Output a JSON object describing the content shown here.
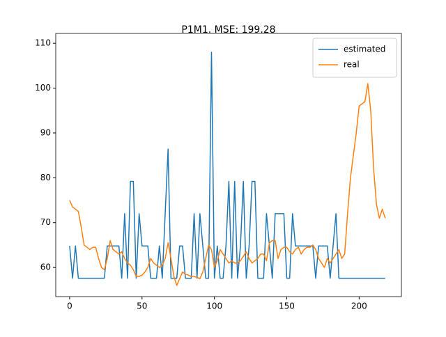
{
  "chart_data": {
    "type": "line",
    "title": "P1M1. MSE: 199.28",
    "x": [
      0,
      2,
      4,
      6,
      8,
      10,
      12,
      14,
      16,
      18,
      20,
      22,
      24,
      26,
      28,
      30,
      32,
      34,
      36,
      38,
      40,
      42,
      44,
      46,
      48,
      50,
      52,
      54,
      56,
      58,
      60,
      62,
      64,
      66,
      68,
      70,
      72,
      74,
      76,
      78,
      80,
      82,
      84,
      86,
      88,
      90,
      92,
      94,
      96,
      98,
      100,
      102,
      104,
      106,
      108,
      110,
      112,
      114,
      116,
      118,
      120,
      122,
      124,
      126,
      128,
      130,
      132,
      134,
      136,
      138,
      140,
      142,
      144,
      146,
      148,
      150,
      152,
      154,
      156,
      158,
      160,
      162,
      164,
      166,
      168,
      170,
      172,
      174,
      176,
      178,
      180,
      182,
      184,
      186,
      188,
      190,
      192,
      194,
      196,
      198,
      200,
      202,
      204,
      206,
      208,
      210,
      212,
      214,
      216,
      218
    ],
    "series": [
      {
        "name": "estimated",
        "color": "#1f77b4",
        "values": [
          64.8,
          57.6,
          64.8,
          57.6,
          57.6,
          57.6,
          57.6,
          57.6,
          57.6,
          57.6,
          57.6,
          57.6,
          57.6,
          64.8,
          64.8,
          64.8,
          64.8,
          64.8,
          57.6,
          72,
          57.6,
          79.2,
          79.2,
          57.6,
          72,
          64.8,
          64.8,
          64.8,
          57.6,
          57.6,
          57.6,
          64.8,
          57.6,
          72,
          86.4,
          57.6,
          57.6,
          57.6,
          64.8,
          64.8,
          57.6,
          57.6,
          57.6,
          72,
          57.6,
          72,
          64.8,
          57.6,
          57.6,
          108,
          57.6,
          64.8,
          57.6,
          57.6,
          64.8,
          79.2,
          57.6,
          79.2,
          57.6,
          64.8,
          79.2,
          57.6,
          64.8,
          79.2,
          79.2,
          57.6,
          57.6,
          57.6,
          72,
          64.8,
          57.6,
          72,
          72,
          72,
          72,
          57.6,
          57.6,
          72,
          64.8,
          64.8,
          64.8,
          64.8,
          64.8,
          64.8,
          64.8,
          57.6,
          64.8,
          64.8,
          64.8,
          64.8,
          57.6,
          64.8,
          72,
          57.6,
          57.6,
          57.6,
          57.6,
          57.6,
          57.6,
          57.6,
          57.6,
          57.6,
          57.6,
          57.6,
          57.6,
          57.6,
          57.6,
          57.6,
          57.6,
          57.6
        ]
      },
      {
        "name": "real",
        "color": "#ff7f0e",
        "values": [
          75,
          73.5,
          73,
          72.5,
          69,
          65,
          64.5,
          64,
          64.5,
          64.5,
          62,
          60,
          59.5,
          62,
          66,
          64,
          63.5,
          63,
          63.5,
          62,
          61,
          60.5,
          59.5,
          58,
          58,
          58.3,
          59,
          60,
          62,
          61,
          60.5,
          60,
          60.5,
          62,
          65.5,
          62,
          58,
          56,
          57.5,
          59,
          58.5,
          58.3,
          58,
          58,
          57.8,
          57.5,
          59,
          62,
          65,
          64,
          60,
          61.5,
          64,
          63,
          62,
          61,
          61.5,
          61,
          61,
          61.5,
          62.5,
          63.5,
          62,
          61,
          61.5,
          62,
          63,
          63,
          61.5,
          65.5,
          66,
          66,
          62,
          64,
          64.5,
          64.5,
          63.5,
          63,
          64,
          64.5,
          63,
          64,
          64.5,
          64.5,
          65,
          64,
          62,
          61,
          60,
          62,
          61,
          62,
          63,
          64,
          62,
          63,
          72,
          80,
          85,
          90,
          96,
          96.5,
          97,
          101,
          95,
          82,
          74,
          71,
          73,
          71
        ]
      }
    ],
    "xlim": [
      -9.6,
      229.2
    ],
    "ylim": [
      53.5,
      112.2
    ],
    "xticks": [
      0,
      50,
      100,
      150,
      200
    ],
    "yticks": [
      60,
      70,
      80,
      90,
      100,
      110
    ],
    "legend": "upper right"
  }
}
